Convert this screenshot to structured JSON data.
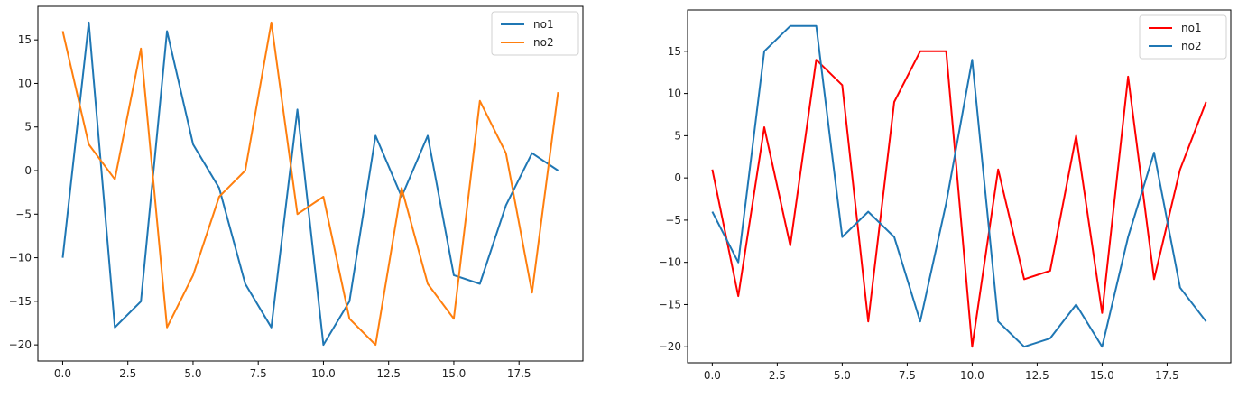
{
  "chart_data": [
    {
      "type": "line",
      "x": [
        0,
        1,
        2,
        3,
        4,
        5,
        6,
        7,
        8,
        9,
        10,
        11,
        12,
        13,
        14,
        15,
        16,
        17,
        18,
        19
      ],
      "series": [
        {
          "name": "no1",
          "color": "#1f77b4",
          "values": [
            -10,
            17,
            -18,
            -15,
            16,
            3,
            -2,
            -13,
            -18,
            7,
            -20,
            -15,
            4,
            -3,
            4,
            -12,
            -13,
            -4,
            2,
            0
          ]
        },
        {
          "name": "no2",
          "color": "#ff7f0e",
          "values": [
            16,
            3,
            -1,
            14,
            -18,
            -12,
            -3,
            0,
            17,
            -5,
            -3,
            -17,
            -20,
            -2,
            -13,
            -17,
            8,
            2,
            -14,
            9
          ]
        }
      ],
      "xticks": [
        0,
        2.5,
        5,
        7.5,
        10,
        12.5,
        15,
        17.5
      ],
      "xtick_labels": [
        "0.0",
        "2.5",
        "5.0",
        "7.5",
        "10.0",
        "12.5",
        "15.0",
        "17.5"
      ],
      "yticks": [
        -20,
        -15,
        -10,
        -5,
        0,
        5,
        10,
        15
      ],
      "ytick_labels": [
        "−20",
        "−15",
        "−10",
        "−5",
        "0",
        "5",
        "10",
        "15"
      ],
      "xlim": [
        -0.95,
        19.95
      ],
      "ylim": [
        -21.85,
        18.85
      ],
      "grid": false,
      "legend": "upper right"
    },
    {
      "type": "line",
      "x": [
        0,
        1,
        2,
        3,
        4,
        5,
        6,
        7,
        8,
        9,
        10,
        11,
        12,
        13,
        14,
        15,
        16,
        17,
        18,
        19
      ],
      "series": [
        {
          "name": "no1",
          "color": "#ff0000",
          "values": [
            1,
            -14,
            6,
            -8,
            14,
            11,
            -17,
            9,
            15,
            15,
            -20,
            1,
            -12,
            -11,
            5,
            -16,
            12,
            -12,
            1,
            9
          ]
        },
        {
          "name": "no2",
          "color": "#1f77b4",
          "values": [
            -4,
            -10,
            15,
            18,
            18,
            -7,
            -4,
            -7,
            -17,
            -3,
            14,
            -17,
            -20,
            -19,
            -15,
            -20,
            -7,
            3,
            -13,
            -17
          ]
        }
      ],
      "xticks": [
        0,
        2.5,
        5,
        7.5,
        10,
        12.5,
        15,
        17.5
      ],
      "xtick_labels": [
        "0.0",
        "2.5",
        "5.0",
        "7.5",
        "10.0",
        "12.5",
        "15.0",
        "17.5"
      ],
      "yticks": [
        -20,
        -15,
        -10,
        -5,
        0,
        5,
        10,
        15
      ],
      "ytick_labels": [
        "−20",
        "−15",
        "−10",
        "−5",
        "0",
        "5",
        "10",
        "15"
      ],
      "xlim": [
        -0.95,
        19.95
      ],
      "ylim": [
        -21.9,
        19.9
      ],
      "grid": false,
      "legend": "upper right"
    }
  ]
}
